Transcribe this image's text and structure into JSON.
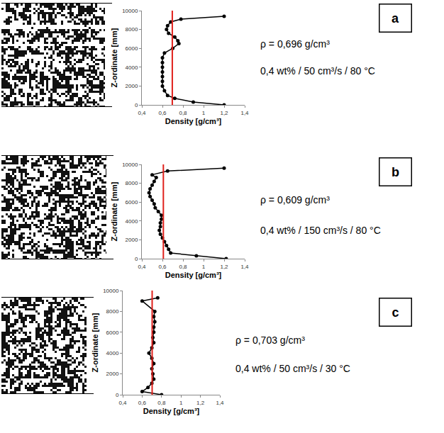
{
  "chart_data": [
    {
      "type": "line",
      "panel": "a",
      "x_label": "Density [g/cm³]",
      "y_label": "Z-ordinate [mm]",
      "xlim": [
        0.4,
        1.4
      ],
      "xticks": [
        {
          "value": 0.4,
          "label": "0,4"
        },
        {
          "value": 0.6,
          "label": "0,6"
        },
        {
          "value": 0.8,
          "label": "0,8"
        },
        1,
        {
          "value": 1.2,
          "label": "1,2"
        },
        {
          "value": 1.4,
          "label": "1,4"
        }
      ],
      "ylim": [
        0,
        10000
      ],
      "yticks": [
        0,
        2000,
        4000,
        6000,
        8000,
        10000
      ],
      "grid": false,
      "series": [
        {
          "color": "#000000",
          "marker": "circle",
          "x": [
            1.2,
            0.9,
            0.72,
            0.65,
            0.62,
            0.6,
            0.6,
            0.6,
            0.6,
            0.6,
            0.6,
            0.6,
            0.62,
            0.7,
            0.76,
            0.75,
            0.72,
            0.66,
            0.64,
            0.65,
            0.68,
            0.78,
            1.2
          ],
          "values": [
            0,
            300,
            700,
            1000,
            1500,
            2000,
            2500,
            3000,
            3500,
            4000,
            4500,
            5000,
            5500,
            6000,
            6500,
            6800,
            7200,
            7600,
            8000,
            8400,
            8800,
            9100,
            9400
          ]
        }
      ],
      "reference_line": {
        "value": 0.696,
        "color": "#e0201b"
      },
      "annotations": [
        "ρ = 0,696 g/cm³",
        "0,4 wt% / 50 cm³/s / 80 °C"
      ]
    },
    {
      "type": "line",
      "panel": "b",
      "x_label": "Density [g/cm³]",
      "y_label": "Z-ordinate [mm]",
      "xlim": [
        0.4,
        1.4
      ],
      "xticks": [
        {
          "value": 0.4,
          "label": "0,4"
        },
        {
          "value": 0.6,
          "label": "0,6"
        },
        {
          "value": 0.8,
          "label": "0,8"
        },
        1,
        {
          "value": 1.2,
          "label": "1,2"
        },
        {
          "value": 1.4,
          "label": "1,4"
        }
      ],
      "ylim": [
        0,
        10000
      ],
      "yticks": [
        0,
        2000,
        4000,
        6000,
        8000,
        10000
      ],
      "grid": false,
      "series": [
        {
          "color": "#000000",
          "marker": "circle",
          "x": [
            1.22,
            0.93,
            0.68,
            0.66,
            0.64,
            0.62,
            0.6,
            0.58,
            0.57,
            0.58,
            0.58,
            0.59,
            0.59,
            0.56,
            0.53,
            0.52,
            0.5,
            0.48,
            0.47,
            0.48,
            0.5,
            0.52,
            0.54,
            0.5,
            0.65,
            1.2
          ],
          "values": [
            0,
            300,
            600,
            1000,
            1400,
            1800,
            2200,
            2600,
            3000,
            3400,
            3800,
            4200,
            4600,
            5000,
            5400,
            5800,
            6200,
            6600,
            7000,
            7400,
            7800,
            8200,
            8600,
            8900,
            9300,
            9600
          ]
        }
      ],
      "reference_line": {
        "value": 0.609,
        "color": "#e0201b"
      },
      "annotations": [
        "ρ = 0,609 g/cm³",
        "0,4 wt% / 150 cm³/s / 80 °C"
      ]
    },
    {
      "type": "line",
      "panel": "c",
      "x_label": "Density [g/cm³]",
      "y_label": "Z-ordinate [mm]",
      "xlim": [
        0.4,
        1.4
      ],
      "xticks": [
        {
          "value": 0.4,
          "label": "0,4"
        },
        {
          "value": 0.6,
          "label": "0,6"
        },
        {
          "value": 0.8,
          "label": "0,8"
        },
        1,
        {
          "value": 1.2,
          "label": "1,2"
        },
        {
          "value": 1.4,
          "label": "1,4"
        }
      ],
      "ylim": [
        0,
        10000
      ],
      "yticks": [
        0,
        2000,
        4000,
        6000,
        8000,
        10000
      ],
      "grid": false,
      "series": [
        {
          "color": "#000000",
          "marker": "circle",
          "x": [
            0.8,
            0.6,
            0.66,
            0.7,
            0.72,
            0.71,
            0.7,
            0.72,
            0.7,
            0.67,
            0.7,
            0.72,
            0.71,
            0.72,
            0.72,
            0.73,
            0.72,
            0.73,
            0.6,
            0.76
          ],
          "values": [
            0,
            300,
            700,
            1100,
            1500,
            2000,
            2500,
            3000,
            3500,
            4000,
            4500,
            5000,
            5500,
            6000,
            6500,
            7000,
            7500,
            8000,
            9000,
            9300
          ]
        }
      ],
      "reference_line": {
        "value": 0.703,
        "color": "#e0201b"
      },
      "annotations": [
        "ρ = 0,703 g/cm³",
        "0,4 wt% / 50 cm³/s / 30 °C"
      ]
    }
  ]
}
